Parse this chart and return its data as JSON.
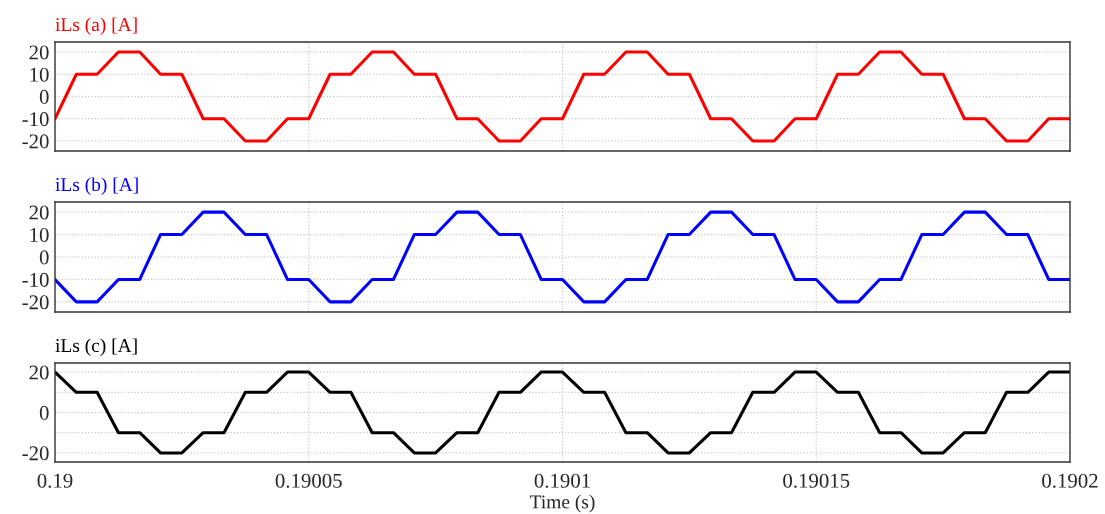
{
  "chart_data": [
    {
      "type": "line",
      "title": "iLs (a) [A]",
      "tick_labels": "y",
      "grid": true,
      "xlim": [
        0.19,
        0.1902
      ],
      "xticks": [
        0.19,
        0.19005,
        0.1901,
        0.19015,
        0.1902
      ],
      "ylim": [
        -24.5,
        24.5
      ],
      "yticks": [
        -20,
        -10,
        0,
        10,
        20
      ],
      "x": [
        0.19,
        0.1900042,
        0.1900083,
        0.1900125,
        0.1900167,
        0.1900208,
        0.190025,
        0.1900292,
        0.1900333,
        0.1900375,
        0.1900417,
        0.1900458,
        0.19005,
        0.1900542,
        0.1900583,
        0.1900625,
        0.1900667,
        0.1900708,
        0.190075,
        0.1900792,
        0.1900833,
        0.1900875,
        0.1900917,
        0.1900958,
        0.1901,
        0.1901042,
        0.1901083,
        0.1901125,
        0.1901167,
        0.1901208,
        0.190125,
        0.1901292,
        0.1901333,
        0.1901375,
        0.1901417,
        0.1901458,
        0.19015,
        0.1901542,
        0.1901583,
        0.1901625,
        0.1901667,
        0.1901708,
        0.190175,
        0.1901792,
        0.1901833,
        0.1901875,
        0.1901917,
        0.1901958,
        0.1902
      ],
      "series": [
        {
          "color": "#ff0000",
          "values": [
            -10,
            10,
            10,
            20,
            20,
            10,
            10,
            -10,
            -10,
            -20,
            -20,
            -10,
            -10,
            10,
            10,
            20,
            20,
            10,
            10,
            -10,
            -10,
            -20,
            -20,
            -10,
            -10,
            10,
            10,
            20,
            20,
            10,
            10,
            -10,
            -10,
            -20,
            -20,
            -10,
            -10,
            10,
            10,
            20,
            20,
            10,
            10,
            -10,
            -10,
            -20,
            -20,
            -10,
            -10
          ]
        }
      ]
    },
    {
      "type": "line",
      "title": "iLs (b) [A]",
      "tick_labels": "y",
      "grid": true,
      "xlim": [
        0.19,
        0.1902
      ],
      "xticks": [
        0.19,
        0.19005,
        0.1901,
        0.19015,
        0.1902
      ],
      "ylim": [
        -24.5,
        24.5
      ],
      "yticks": [
        -20,
        -10,
        0,
        10,
        20
      ],
      "x": [
        0.19,
        0.1900042,
        0.1900083,
        0.1900125,
        0.1900167,
        0.1900208,
        0.190025,
        0.1900292,
        0.1900333,
        0.1900375,
        0.1900417,
        0.1900458,
        0.19005,
        0.1900542,
        0.1900583,
        0.1900625,
        0.1900667,
        0.1900708,
        0.190075,
        0.1900792,
        0.1900833,
        0.1900875,
        0.1900917,
        0.1900958,
        0.1901,
        0.1901042,
        0.1901083,
        0.1901125,
        0.1901167,
        0.1901208,
        0.190125,
        0.1901292,
        0.1901333,
        0.1901375,
        0.1901417,
        0.1901458,
        0.19015,
        0.1901542,
        0.1901583,
        0.1901625,
        0.1901667,
        0.1901708,
        0.190175,
        0.1901792,
        0.1901833,
        0.1901875,
        0.1901917,
        0.1901958,
        0.1902
      ],
      "series": [
        {
          "color": "#0000ff",
          "values": [
            -10,
            -20,
            -20,
            -10,
            -10,
            10,
            10,
            20,
            20,
            10,
            10,
            -10,
            -10,
            -20,
            -20,
            -10,
            -10,
            10,
            10,
            20,
            20,
            10,
            10,
            -10,
            -10,
            -20,
            -20,
            -10,
            -10,
            10,
            10,
            20,
            20,
            10,
            10,
            -10,
            -10,
            -20,
            -20,
            -10,
            -10,
            10,
            10,
            20,
            20,
            10,
            10,
            -10,
            -10
          ]
        }
      ]
    },
    {
      "type": "line",
      "title": "iLs (c) [A]",
      "xlabel": "Time (s)",
      "grid": true,
      "xlim": [
        0.19,
        0.1902
      ],
      "xticks": [
        0.19,
        0.19005,
        0.1901,
        0.19015,
        0.1902
      ],
      "ylim": [
        -24.5,
        24.5
      ],
      "yticks": [
        -20,
        {
          "value": -10,
          "label": null
        },
        0,
        {
          "value": 10,
          "label": null
        },
        20
      ],
      "x": [
        0.19,
        0.1900042,
        0.1900083,
        0.1900125,
        0.1900167,
        0.1900208,
        0.190025,
        0.1900292,
        0.1900333,
        0.1900375,
        0.1900417,
        0.1900458,
        0.19005,
        0.1900542,
        0.1900583,
        0.1900625,
        0.1900667,
        0.1900708,
        0.190075,
        0.1900792,
        0.1900833,
        0.1900875,
        0.1900917,
        0.1900958,
        0.1901,
        0.1901042,
        0.1901083,
        0.1901125,
        0.1901167,
        0.1901208,
        0.190125,
        0.1901292,
        0.1901333,
        0.1901375,
        0.1901417,
        0.1901458,
        0.19015,
        0.1901542,
        0.1901583,
        0.1901625,
        0.1901667,
        0.1901708,
        0.190175,
        0.1901792,
        0.1901833,
        0.1901875,
        0.1901917,
        0.1901958,
        0.1902
      ],
      "series": [
        {
          "color": "#000000",
          "values": [
            20,
            10,
            10,
            -10,
            -10,
            -20,
            -20,
            -10,
            -10,
            10,
            10,
            20,
            20,
            10,
            10,
            -10,
            -10,
            -20,
            -20,
            -10,
            -10,
            10,
            10,
            20,
            20,
            10,
            10,
            -10,
            -10,
            -20,
            -20,
            -10,
            -10,
            10,
            10,
            20,
            20,
            10,
            10,
            -10,
            -10,
            -20,
            -20,
            -10,
            -10,
            10,
            10,
            20,
            20
          ]
        }
      ]
    }
  ]
}
